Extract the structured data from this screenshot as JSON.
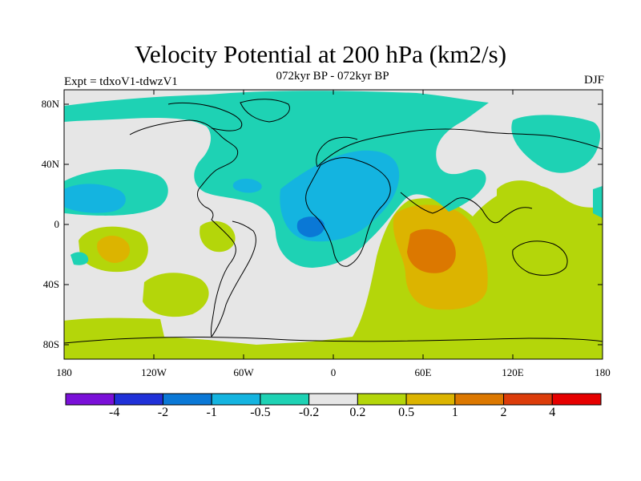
{
  "header": {
    "title": "Velocity Potential at 200 hPa (km2/s)",
    "subtitle": "072kyr BP - 072kyr BP",
    "experiment": "Expt = tdxoV1-tdwzV1",
    "season": "DJF"
  },
  "axes": {
    "lat_labels": [
      "80N",
      "40N",
      "0",
      "40S",
      "80S"
    ],
    "lon_labels": [
      "180",
      "120W",
      "60W",
      "0",
      "60E",
      "120E",
      "180"
    ]
  },
  "colorbar": {
    "labels": [
      "-4",
      "-2",
      "-1",
      "-0.5",
      "-0.2",
      "0.2",
      "0.5",
      "1",
      "2",
      "4"
    ],
    "colors": [
      "#7a10d8",
      "#2031d8",
      "#0a78d6",
      "#14b4e0",
      "#1ed2b4",
      "#e6e6e6",
      "#b4d60a",
      "#dcb400",
      "#dc7800",
      "#dc3c0a",
      "#e60000"
    ]
  },
  "colors": {
    "background": "#e6e6e6",
    "coast": "#000000"
  }
}
